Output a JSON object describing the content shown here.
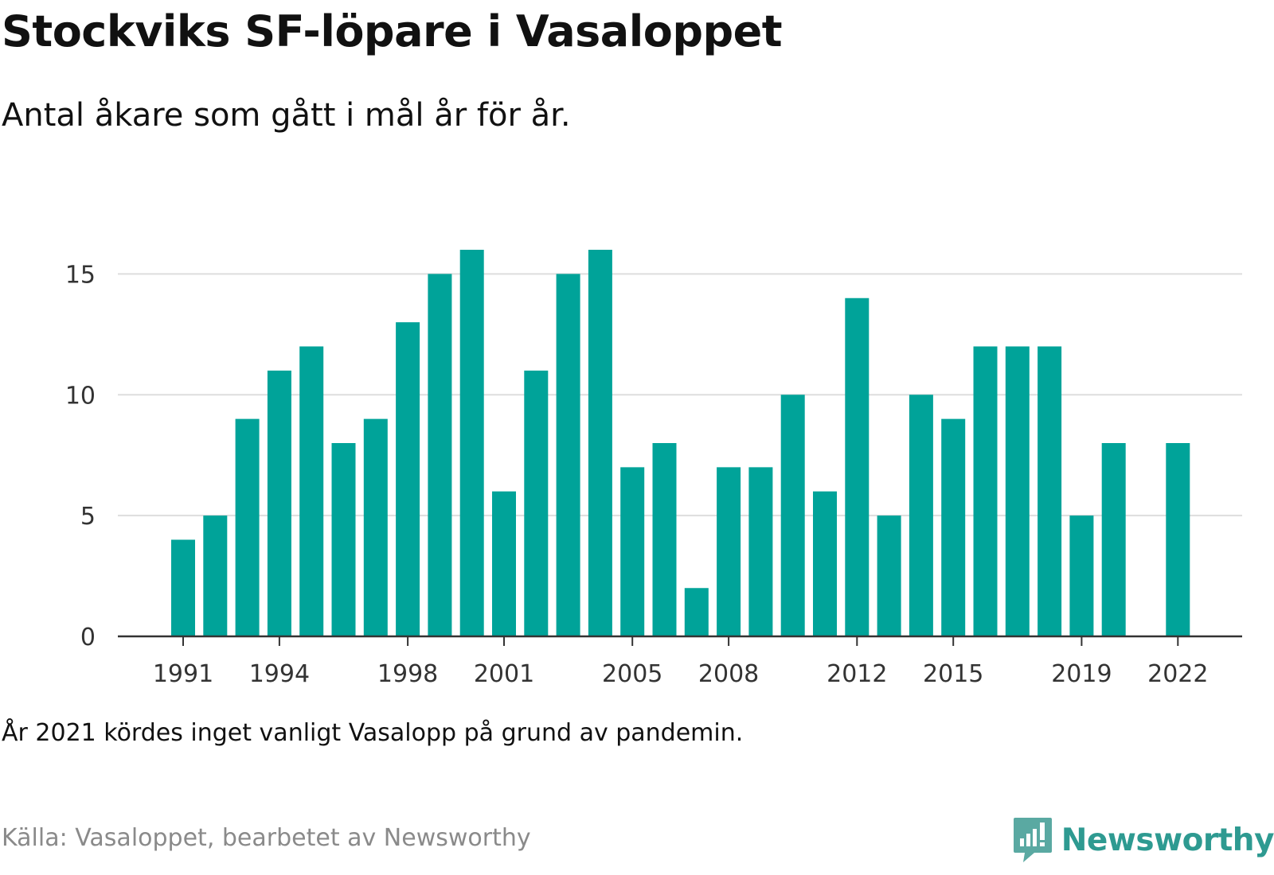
{
  "header": {
    "title": "Stockviks SF-löpare i Vasaloppet",
    "subtitle": "Antal åkare som gått i mål år för år."
  },
  "footer": {
    "note": "År 2021 kördes inget vanligt Vasalopp på grund av pandemin.",
    "source": "Källa: Vasaloppet, bearbetet av Newsworthy",
    "brand": "Newsworthy",
    "brand_icon": "newsworthy-logo-icon"
  },
  "colors": {
    "bar": "#00a399",
    "grid": "#dddddd",
    "axis": "#333333",
    "brand": "#2e9a91"
  },
  "chart_data": {
    "type": "bar",
    "title": "Stockviks SF-löpare i Vasaloppet",
    "subtitle": "Antal åkare som gått i mål år för år.",
    "categories": [
      1991,
      1992,
      1993,
      1994,
      1995,
      1996,
      1997,
      1998,
      1999,
      2000,
      2001,
      2002,
      2003,
      2004,
      2005,
      2006,
      2007,
      2008,
      2009,
      2010,
      2011,
      2012,
      2013,
      2014,
      2015,
      2016,
      2017,
      2018,
      2019,
      2020,
      2021,
      2022
    ],
    "values": [
      4,
      5,
      9,
      11,
      12,
      8,
      9,
      13,
      15,
      16,
      6,
      11,
      15,
      16,
      7,
      8,
      2,
      7,
      7,
      10,
      6,
      14,
      5,
      10,
      9,
      12,
      12,
      12,
      5,
      8,
      null,
      8
    ],
    "x_tick_labels": [
      "1991",
      "1994",
      "1998",
      "2001",
      "2005",
      "2008",
      "2012",
      "2015",
      "2019",
      "2022"
    ],
    "y_ticks": [
      0,
      5,
      10,
      15
    ],
    "ylim": [
      0,
      17
    ],
    "xlabel": "",
    "ylabel": "",
    "grid": true,
    "legend": "none"
  }
}
